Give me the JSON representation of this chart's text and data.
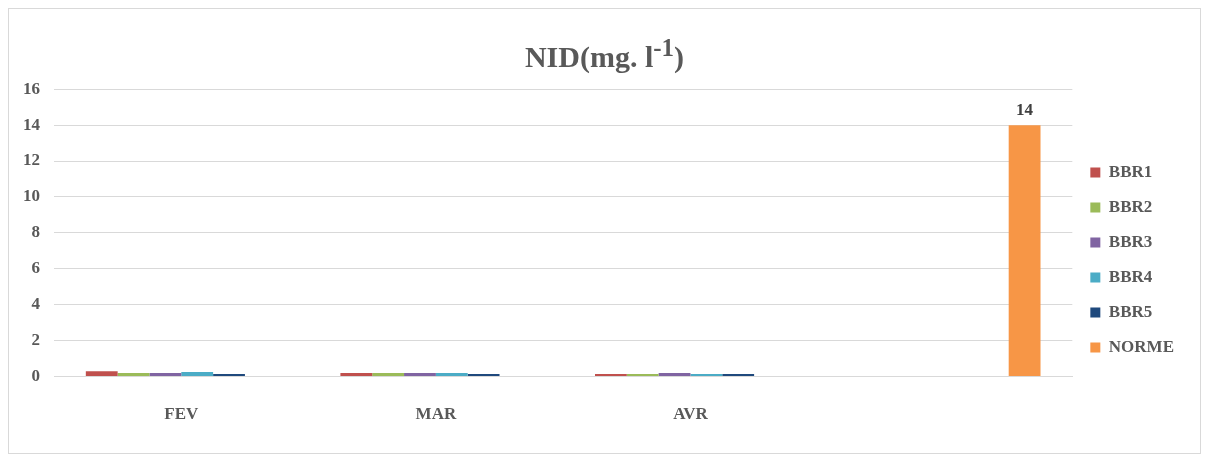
{
  "chart_data": {
    "type": "bar",
    "title": "NID(mg. l$^{-1}$)",
    "categories": [
      "FEV",
      "MAR",
      "AVR",
      null
    ],
    "series": [
      {
        "name": "BBR1",
        "color": "#c0504d",
        "values": [
          0.3,
          0.2,
          0.15,
          null
        ]
      },
      {
        "name": "BBR2",
        "color": "#9bbb59",
        "values": [
          0.2,
          0.2,
          0.15,
          null
        ]
      },
      {
        "name": "BBR3",
        "color": "#8064a2",
        "values": [
          0.2,
          0.2,
          0.2,
          null
        ]
      },
      {
        "name": "BBR4",
        "color": "#4bacc6",
        "values": [
          0.25,
          0.2,
          0.15,
          null
        ]
      },
      {
        "name": "BBR5",
        "color": "#1f497d",
        "values": [
          0.15,
          0.15,
          0.15,
          null
        ]
      },
      {
        "name": "NORME",
        "color": "#f79646",
        "values": [
          null,
          null,
          null,
          14
        ],
        "value_labels": [
          null,
          null,
          null,
          "14"
        ]
      }
    ],
    "ylim": [
      0,
      16
    ],
    "yticks": [
      0,
      2,
      4,
      6,
      8,
      10,
      12,
      14,
      16
    ],
    "grid": "y",
    "legend": "right"
  }
}
